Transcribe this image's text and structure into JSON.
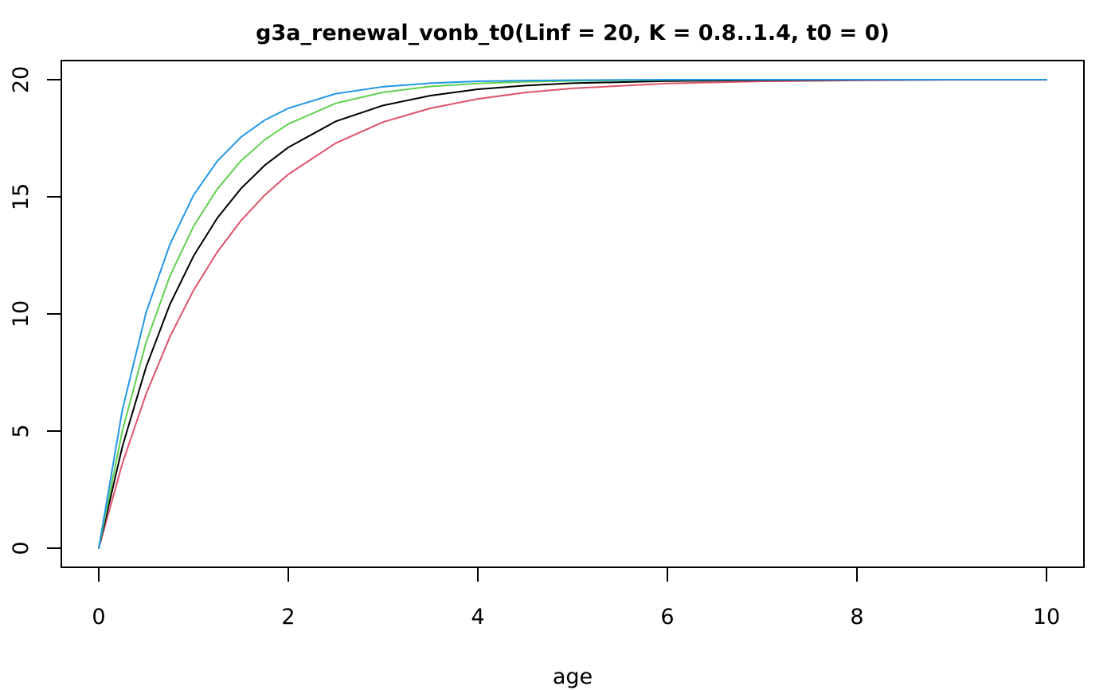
{
  "chart_data": {
    "type": "line",
    "title": "g3a_renewal_vonb_t0(Linf = 20, K = 0.8..1.4, t0 = 0)",
    "xlabel": "age",
    "ylabel": "",
    "xlim": [
      0,
      10
    ],
    "ylim": [
      0,
      20
    ],
    "x_ticks": [
      0,
      2,
      4,
      6,
      8,
      10
    ],
    "y_ticks": [
      0,
      5,
      10,
      15,
      20
    ],
    "grid": false,
    "legend": "none",
    "x": [
      0,
      0.25,
      0.5,
      0.75,
      1,
      1.25,
      1.5,
      1.75,
      2,
      2.5,
      3,
      3.5,
      4,
      4.5,
      5,
      6,
      7,
      8,
      9,
      10
    ],
    "series": [
      {
        "color": "#df536b",
        "values": [
          0,
          3.63,
          6.59,
          9.02,
          11.01,
          12.64,
          13.98,
          15.07,
          15.96,
          17.29,
          18.19,
          18.78,
          19.18,
          19.45,
          19.63,
          19.84,
          19.93,
          19.97,
          19.99,
          19.99
        ]
      },
      {
        "color": "#000000",
        "values": [
          0,
          4.35,
          7.74,
          10.4,
          12.47,
          14.09,
          15.35,
          16.34,
          17.11,
          18.22,
          18.9,
          19.32,
          19.59,
          19.75,
          19.85,
          19.94,
          19.98,
          19.99,
          20.0,
          20.0
        ]
      },
      {
        "color": "#61d04f",
        "values": [
          0,
          5.03,
          8.79,
          11.61,
          13.74,
          15.33,
          16.53,
          17.43,
          18.11,
          18.99,
          19.46,
          19.71,
          19.84,
          19.91,
          19.95,
          19.99,
          20.0,
          20.0,
          20.0,
          20.0
        ]
      },
      {
        "color": "#2297e6",
        "values": [
          0,
          5.92,
          10.07,
          12.96,
          15.07,
          16.52,
          17.55,
          18.27,
          18.78,
          19.4,
          19.7,
          19.85,
          19.93,
          19.96,
          19.98,
          20.0,
          20.0,
          20.0,
          20.0,
          20.0
        ]
      }
    ]
  }
}
